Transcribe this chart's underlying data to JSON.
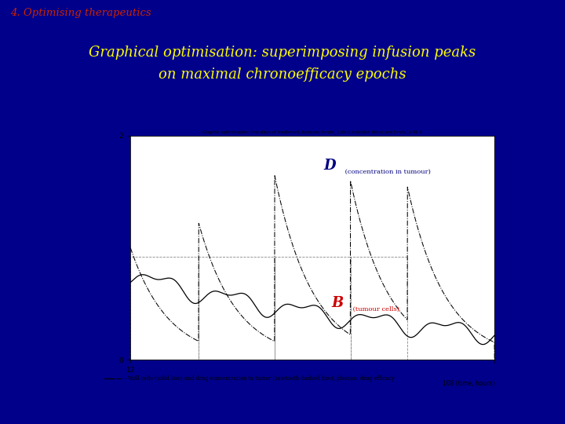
{
  "bg_color": "#00008B",
  "slide_title": "4. Optimising therapeutics",
  "slide_title_color": "#CC2200",
  "slide_title_bg": "#F0EAD6",
  "main_title_line1": "Graphical optimisation: superimposing infusion peaks",
  "main_title_line2": "on maximal chronoefficacy epochs",
  "main_title_color": "#FFFF00",
  "chart_bg": "#FFFFFF",
  "chart_title": "Graphic optimisation: first days of treatment, between t=phi_1 (first injection time) and t=phi1+96 h",
  "label_D": "D",
  "label_D_text": " (concentration in tumour)",
  "label_D_color": "#000080",
  "label_B": "B",
  "label_B_text": " (tumour cells)",
  "label_B_color": "#CC0000",
  "legend_text": "Vhill cells (solid line) and drug concentration in tumor (sawtooth dashed line); plateau: drug efficacy",
  "xlim": [
    12,
    108
  ],
  "ylim": [
    0,
    2
  ],
  "injections": [
    12,
    30,
    50,
    70,
    85
  ],
  "peaks": [
    1.0,
    1.22,
    1.65,
    1.6,
    1.55
  ],
  "plateau_y": 0.92,
  "plateau_intervals": [
    [
      12,
      30
    ],
    [
      30,
      50
    ],
    [
      50,
      70
    ],
    [
      70,
      85
    ]
  ]
}
